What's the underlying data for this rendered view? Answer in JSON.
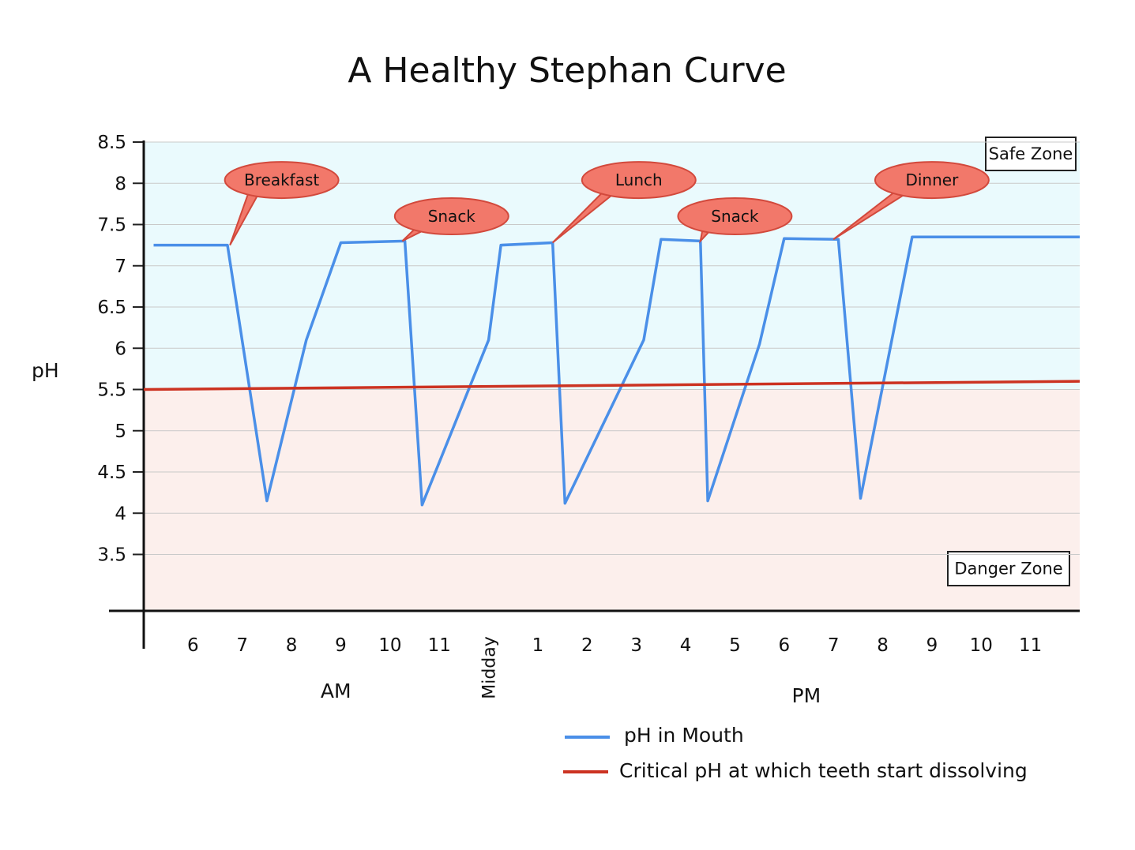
{
  "chart_data": {
    "type": "line",
    "title": "A Healthy Stephan Curve",
    "ylabel": "pH",
    "ylim": [
      3.5,
      8.5
    ],
    "yticks": [
      "8.5",
      "8",
      "7.5",
      "7",
      "6.5",
      "6",
      "5.5",
      "5",
      "4.5",
      "4",
      "3.5"
    ],
    "xticks": [
      {
        "label": "6",
        "x": 6
      },
      {
        "label": "7",
        "x": 7
      },
      {
        "label": "8",
        "x": 8
      },
      {
        "label": "9",
        "x": 9
      },
      {
        "label": "10",
        "x": 10
      },
      {
        "label": "11",
        "x": 11
      },
      {
        "label": "Midday",
        "x": 12
      },
      {
        "label": "1",
        "x": 13
      },
      {
        "label": "2",
        "x": 14
      },
      {
        "label": "3",
        "x": 15
      },
      {
        "label": "4",
        "x": 16
      },
      {
        "label": "5",
        "x": 17
      },
      {
        "label": "6",
        "x": 18
      },
      {
        "label": "7",
        "x": 19
      },
      {
        "label": "8",
        "x": 20
      },
      {
        "label": "9",
        "x": 21
      },
      {
        "label": "10",
        "x": 22
      },
      {
        "label": "11",
        "x": 23
      }
    ],
    "period_labels": [
      {
        "label": "AM",
        "x": 8.9
      },
      {
        "label": "PM",
        "x": 18.45
      }
    ],
    "series": [
      {
        "name": "pH in Mouth",
        "color": "#4a8fe8",
        "points": [
          [
            5.2,
            7.25
          ],
          [
            6.7,
            7.25
          ],
          [
            7.5,
            4.15
          ],
          [
            8.3,
            6.1
          ],
          [
            9.0,
            7.28
          ],
          [
            10.3,
            7.3
          ],
          [
            10.65,
            4.1
          ],
          [
            12.0,
            6.1
          ],
          [
            12.25,
            7.25
          ],
          [
            13.3,
            7.28
          ],
          [
            13.55,
            4.12
          ],
          [
            15.15,
            6.1
          ],
          [
            15.5,
            7.32
          ],
          [
            16.3,
            7.3
          ],
          [
            16.45,
            4.15
          ],
          [
            17.5,
            6.05
          ],
          [
            18.0,
            7.33
          ],
          [
            19.1,
            7.32
          ],
          [
            19.55,
            4.18
          ],
          [
            20.6,
            7.35
          ],
          [
            24.0,
            7.35
          ]
        ]
      },
      {
        "name": "Critical pH at which teeth start dissolving",
        "color": "#cc3322",
        "points": [
          [
            5.0,
            5.5
          ],
          [
            24.0,
            5.6
          ]
        ]
      }
    ],
    "annotations": [
      {
        "label": "Breakfast",
        "x": 7.8,
        "y": 8.04,
        "tip_x": 6.75,
        "tip_y": 7.25
      },
      {
        "label": "Snack",
        "x": 11.25,
        "y": 7.6,
        "tip_x": 10.25,
        "tip_y": 7.3
      },
      {
        "label": "Lunch",
        "x": 15.05,
        "y": 8.04,
        "tip_x": 13.3,
        "tip_y": 7.28
      },
      {
        "label": "Snack",
        "x": 17.0,
        "y": 7.6,
        "tip_x": 16.3,
        "tip_y": 7.3
      },
      {
        "label": "Dinner",
        "x": 21.0,
        "y": 8.04,
        "tip_x": 19.0,
        "tip_y": 7.32
      }
    ],
    "zones": [
      {
        "label": "Safe Zone",
        "from": 5.5,
        "to": 8.5,
        "color": "#eafafd"
      },
      {
        "label": "Danger Zone",
        "from": 2.85,
        "to": 5.5,
        "color": "#fcefec"
      }
    ],
    "grid": true,
    "legend_position": "bottom"
  }
}
